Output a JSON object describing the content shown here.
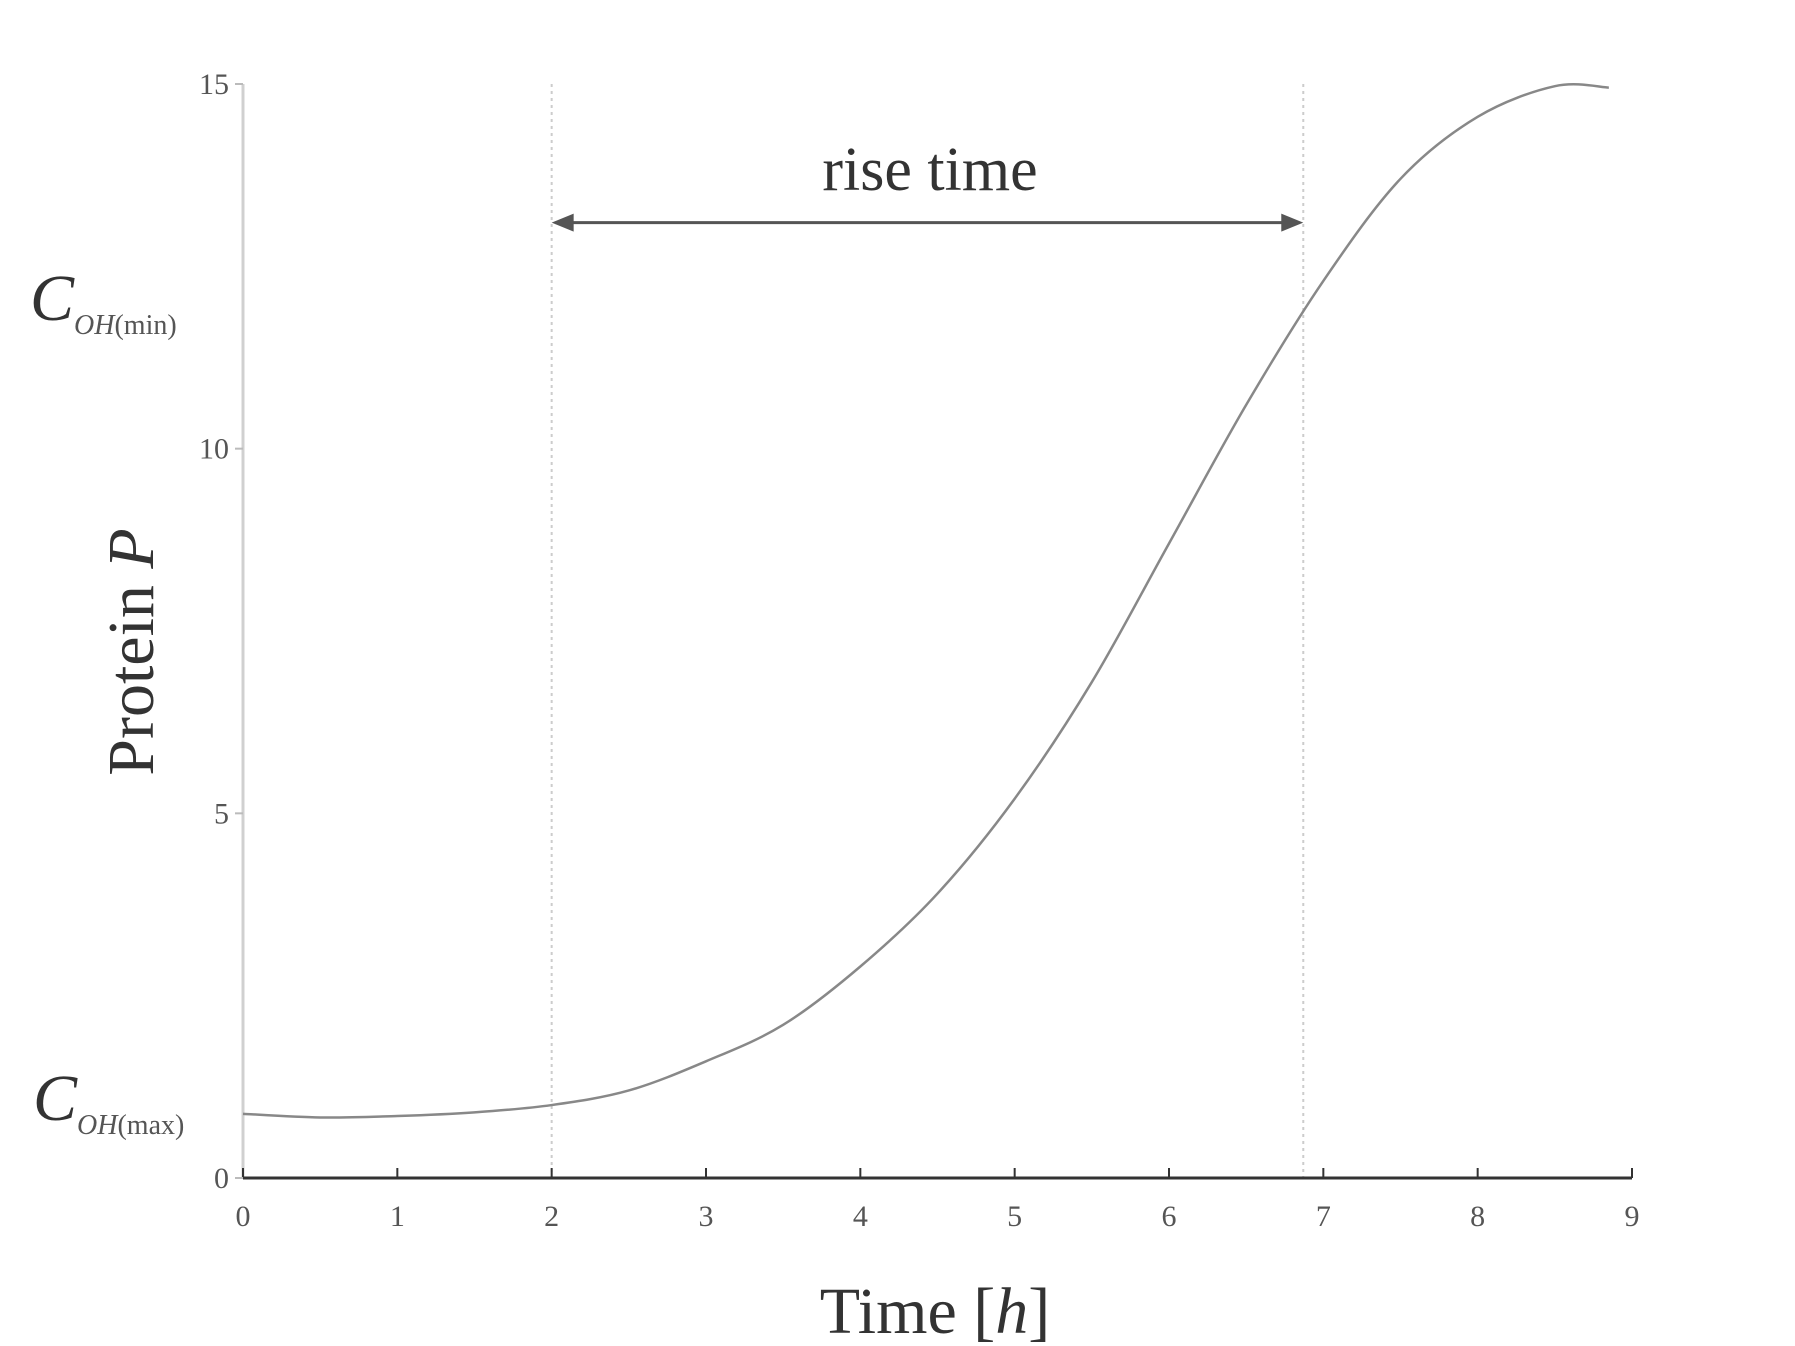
{
  "chart_data": {
    "type": "line",
    "xlabel_main": "Time [",
    "xlabel_var": "h",
    "xlabel_end": "]",
    "ylabel_main": "Protein ",
    "ylabel_var": "P",
    "xlim": [
      0,
      9
    ],
    "ylim": [
      0,
      15
    ],
    "xticks": [
      "0",
      "1",
      "2",
      "3",
      "4",
      "5",
      "6",
      "7",
      "8",
      "9"
    ],
    "xtick_values": [
      0,
      1,
      2,
      3,
      4,
      5,
      6,
      7,
      8,
      9
    ],
    "yticks": [
      "0",
      "5",
      "10",
      "15"
    ],
    "ytick_values": [
      0,
      5,
      10,
      15
    ],
    "grid": false,
    "annotation": "rise time",
    "rise_time_interval": [
      2.0,
      6.87
    ],
    "reference_lines_x": [
      2.0,
      6.87
    ],
    "rise_time_arrow_y": 13.1,
    "c_min_label": {
      "main": "C",
      "sub_italic": "OH",
      "sub": "(min)",
      "y": 12.3
    },
    "c_max_label": {
      "main": "C",
      "sub_italic": "OH",
      "sub": "(max)",
      "y": 1.1
    },
    "series": [
      {
        "x": [
          0,
          0.5,
          1,
          1.5,
          2,
          2.5,
          3,
          3.5,
          4,
          4.5,
          5,
          5.5,
          6,
          6.5,
          7,
          7.5,
          8,
          8.5,
          8.85
        ],
        "y": [
          0.88,
          0.83,
          0.85,
          0.9,
          1.0,
          1.2,
          1.6,
          2.1,
          2.9,
          3.9,
          5.2,
          6.8,
          8.7,
          10.6,
          12.3,
          13.7,
          14.55,
          14.97,
          14.95
        ]
      }
    ],
    "colors": {
      "line": "#888888",
      "axis": "#333333",
      "text": "#333333",
      "tick": "#555555",
      "guide": "#cccccc"
    }
  }
}
